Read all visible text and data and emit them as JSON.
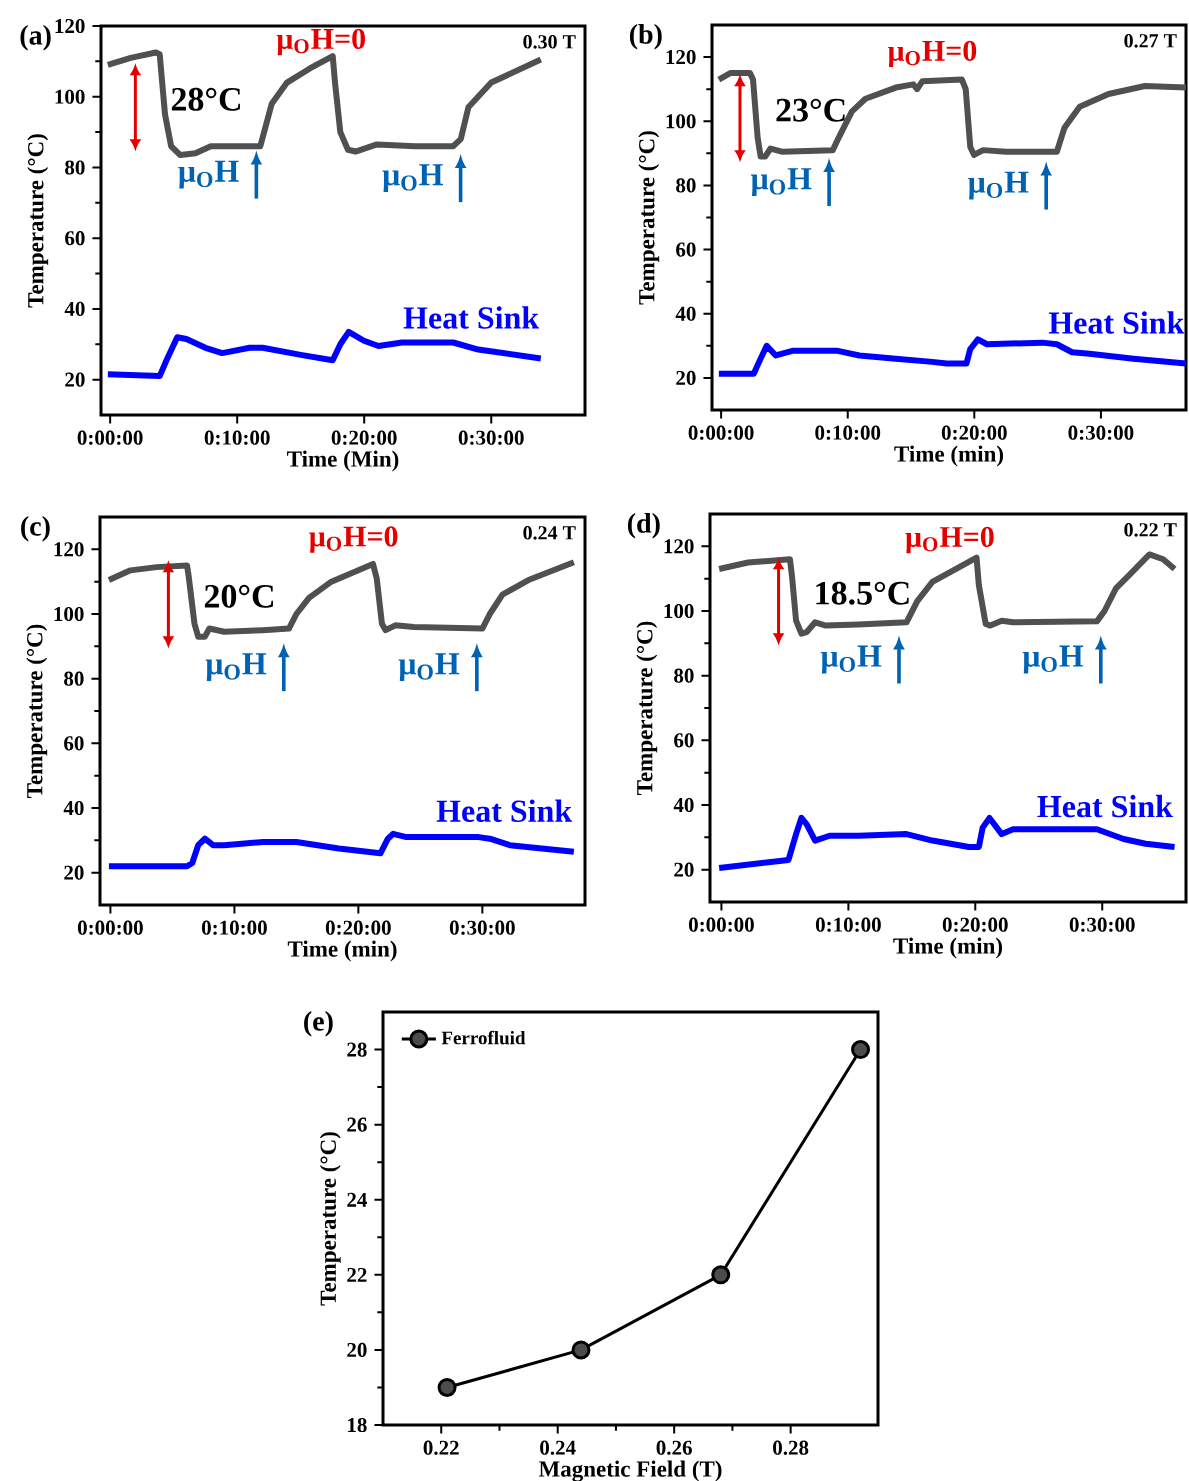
{
  "chart_data": [
    {
      "type": "line",
      "title": "(a)",
      "subtitle": "0.30 T",
      "xlabel": "Time (Min)",
      "ylabel": "Temperature (°C)",
      "xlim": [
        -0.012,
        0.623
      ],
      "ylim": [
        10,
        120
      ],
      "xticks": [
        {
          "value": 0,
          "label": "0:00:00"
        },
        {
          "value": 0.1667,
          "label": "0:10:00"
        },
        {
          "value": 0.3333,
          "label": "0:20:00"
        },
        {
          "value": 0.5,
          "label": "0:30:00"
        }
      ],
      "yticks": [
        20,
        40,
        60,
        80,
        100,
        120
      ],
      "annotations": [
        "28°C",
        "μ$_{O}$H=0",
        "μ$_{O}$H",
        "μ$_{O}$H"
      ],
      "series": [
        {
          "color": "#505050",
          "x": [
            -0.003,
            0.027,
            0.06,
            0.065,
            0.072,
            0.08,
            0.092,
            0.112,
            0.132,
            0.172,
            0.197,
            0.202,
            0.212,
            0.232,
            0.262,
            0.292,
            0.295,
            0.302,
            0.312,
            0.322,
            0.35,
            0.4,
            0.45,
            0.46,
            0.47,
            0.5,
            0.565
          ],
          "values": [
            109,
            111,
            112.5,
            112,
            95,
            86,
            83.5,
            84,
            86,
            86,
            86,
            90,
            98,
            104,
            108,
            111.5,
            104,
            90,
            85,
            84.5,
            86.5,
            86,
            86,
            88,
            97,
            104,
            110.5
          ]
        },
        {
          "name": "Heat Sink",
          "color": "#0000ff",
          "x": [
            -0.003,
            0.065,
            0.075,
            0.088,
            0.1,
            0.125,
            0.147,
            0.183,
            0.2,
            0.25,
            0.292,
            0.302,
            0.313,
            0.333,
            0.352,
            0.383,
            0.45,
            0.483,
            0.565
          ],
          "values": [
            21.5,
            21,
            26,
            32,
            31.5,
            29,
            27.5,
            29,
            29,
            27,
            25.5,
            30,
            33.5,
            31,
            29.5,
            30.5,
            30.5,
            28.5,
            26
          ]
        }
      ]
    },
    {
      "type": "line",
      "title": "(b)",
      "subtitle": "0.27 T",
      "xlabel": "Time (min)",
      "ylabel": "Temperature (°C)",
      "xlim": [
        -0.012,
        0.612
      ],
      "ylim": [
        10,
        130
      ],
      "xticks": [
        {
          "value": 0,
          "label": "0:00:00"
        },
        {
          "value": 0.1667,
          "label": "0:10:00"
        },
        {
          "value": 0.3333,
          "label": "0:20:00"
        },
        {
          "value": 0.5,
          "label": "0:30:00"
        }
      ],
      "yticks": [
        20,
        40,
        60,
        80,
        100,
        120
      ],
      "annotations": [
        "23°C",
        "μ$_{O}$H=0",
        "μ$_{O}$H",
        "μ$_{O}$H"
      ],
      "series": [
        {
          "color": "#505050",
          "x": [
            -0.003,
            0.012,
            0.038,
            0.042,
            0.048,
            0.052,
            0.058,
            0.065,
            0.08,
            0.147,
            0.155,
            0.172,
            0.19,
            0.23,
            0.253,
            0.258,
            0.265,
            0.317,
            0.322,
            0.328,
            0.333,
            0.345,
            0.375,
            0.442,
            0.452,
            0.472,
            0.51,
            0.558,
            0.612
          ],
          "values": [
            113,
            115,
            115,
            113,
            95,
            89,
            89,
            91.5,
            90.5,
            91,
            95,
            103,
            107,
            110.5,
            111.5,
            110,
            112.5,
            113,
            110,
            92,
            89.5,
            91,
            90.5,
            90.5,
            98,
            104.5,
            108.5,
            111,
            110.5
          ]
        },
        {
          "name": "Heat Sink",
          "color": "#0000ff",
          "x": [
            -0.003,
            0.043,
            0.05,
            0.06,
            0.072,
            0.095,
            0.152,
            0.182,
            0.23,
            0.278,
            0.297,
            0.323,
            0.328,
            0.338,
            0.35,
            0.423,
            0.442,
            0.462,
            0.485,
            0.543,
            0.612
          ],
          "values": [
            21.3,
            21.3,
            25,
            30,
            27,
            28.5,
            28.5,
            27,
            26,
            25,
            24.5,
            24.5,
            29,
            32,
            30.5,
            31,
            30.5,
            28,
            27.5,
            26,
            24.5
          ]
        }
      ]
    },
    {
      "type": "line",
      "title": "(c)",
      "subtitle": "0.24 T",
      "xlabel": "Time (min)",
      "ylabel": "Temperature (°C)",
      "xlim": [
        -0.014,
        0.638
      ],
      "ylim": [
        10,
        130
      ],
      "xticks": [
        {
          "value": 0,
          "label": "0:00:00"
        },
        {
          "value": 0.1667,
          "label": "0:10:00"
        },
        {
          "value": 0.3333,
          "label": "0:20:00"
        },
        {
          "value": 0.5,
          "label": "0:30:00"
        }
      ],
      "yticks": [
        20,
        40,
        60,
        80,
        100,
        120
      ],
      "annotations": [
        "20°C",
        "μ$_{O}$H=0",
        "μ$_{O}$H",
        "μ$_{O}$H"
      ],
      "series": [
        {
          "color": "#505050",
          "x": [
            -0.002,
            0.027,
            0.062,
            0.103,
            0.105,
            0.113,
            0.118,
            0.127,
            0.133,
            0.153,
            0.205,
            0.24,
            0.25,
            0.267,
            0.297,
            0.353,
            0.358,
            0.365,
            0.37,
            0.383,
            0.408,
            0.5,
            0.51,
            0.527,
            0.562,
            0.623
          ],
          "values": [
            110.5,
            113.5,
            114.5,
            115,
            112,
            97,
            93,
            93,
            95.5,
            94.5,
            95,
            95.5,
            100,
            105,
            110,
            115.5,
            111,
            97,
            95,
            96.5,
            96,
            95.5,
            100,
            106,
            110.5,
            116
          ]
        },
        {
          "name": "Heat Sink",
          "color": "#0000ff",
          "x": [
            -0.002,
            0.103,
            0.11,
            0.118,
            0.127,
            0.138,
            0.153,
            0.205,
            0.25,
            0.307,
            0.363,
            0.373,
            0.38,
            0.398,
            0.495,
            0.51,
            0.537,
            0.623
          ],
          "values": [
            22,
            22,
            23,
            28.5,
            30.5,
            28.5,
            28.5,
            29.5,
            29.5,
            27.5,
            26,
            30.5,
            32,
            31,
            31,
            30.5,
            28.5,
            26.5
          ]
        }
      ]
    },
    {
      "type": "line",
      "title": "(d)",
      "subtitle": "0.22 T",
      "xlabel": "Time (min)",
      "ylabel": "Temperature (°C)",
      "xlim": [
        -0.015,
        0.61
      ],
      "ylim": [
        10,
        130
      ],
      "xticks": [
        {
          "value": 0,
          "label": "0:00:00"
        },
        {
          "value": 0.1667,
          "label": "0:10:00"
        },
        {
          "value": 0.3333,
          "label": "0:20:00"
        },
        {
          "value": 0.5,
          "label": "0:30:00"
        }
      ],
      "yticks": [
        20,
        40,
        60,
        80,
        100,
        120
      ],
      "annotations": [
        "18.5°C",
        "μ$_{O}$H=0",
        "μ$_{O}$H",
        "μ$_{O}$H"
      ],
      "series": [
        {
          "color": "#505050",
          "x": [
            -0.003,
            0.035,
            0.09,
            0.093,
            0.098,
            0.105,
            0.112,
            0.123,
            0.137,
            0.18,
            0.243,
            0.257,
            0.277,
            0.335,
            0.338,
            0.347,
            0.353,
            0.368,
            0.383,
            0.493,
            0.503,
            0.518,
            0.537,
            0.562,
            0.58,
            0.595
          ],
          "values": [
            113,
            115,
            116,
            110,
            97,
            93,
            93.5,
            96.5,
            95.5,
            95.8,
            96.5,
            103,
            109,
            116.5,
            108,
            96,
            95.5,
            97,
            96.5,
            96.8,
            100,
            107,
            111.5,
            117.5,
            116,
            113
          ]
        },
        {
          "name": "Heat Sink",
          "color": "#0000ff",
          "x": [
            -0.003,
            0.088,
            0.098,
            0.105,
            0.112,
            0.123,
            0.142,
            0.18,
            0.243,
            0.277,
            0.325,
            0.338,
            0.343,
            0.352,
            0.368,
            0.383,
            0.493,
            0.528,
            0.557,
            0.595
          ],
          "values": [
            20.5,
            23,
            31,
            36,
            34,
            29,
            30.5,
            30.5,
            31,
            29,
            27,
            27,
            33,
            36,
            31,
            32.5,
            32.5,
            29.5,
            28,
            27
          ]
        }
      ]
    },
    {
      "type": "line",
      "title": "(e)",
      "xlabel": "Magnetic Field (T)",
      "ylabel": "Temperature (°C)",
      "xlim": [
        0.21,
        0.295
      ],
      "ylim": [
        18,
        29
      ],
      "xticks": [
        0.22,
        0.24,
        0.26,
        0.28
      ],
      "yticks": [
        18,
        20,
        22,
        24,
        26,
        28
      ],
      "legend": "top left",
      "marker": "circle",
      "series": [
        {
          "name": "Ferrofluid",
          "color": "#000000",
          "x": [
            0.221,
            0.244,
            0.268,
            0.292
          ],
          "values": [
            19,
            20,
            22,
            28
          ]
        }
      ]
    }
  ]
}
